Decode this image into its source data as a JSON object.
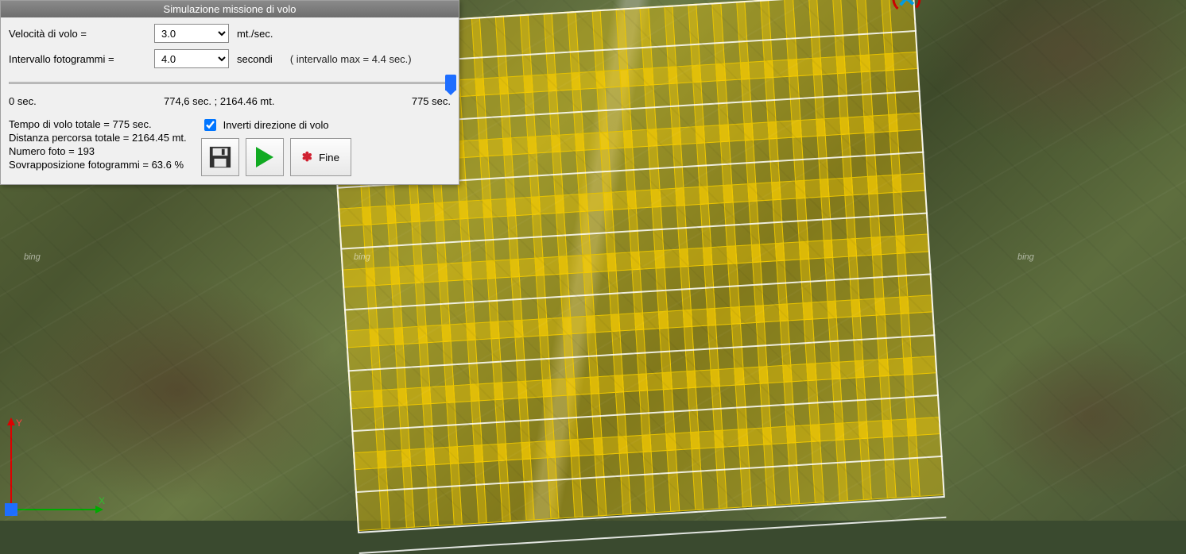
{
  "dialog": {
    "title": "Simulazione missione di volo",
    "speed": {
      "label": "Velocità di volo =",
      "value": "3.0",
      "unit": "mt./sec."
    },
    "interval": {
      "label": "Intervallo fotogrammi =",
      "value": "4.0",
      "unit": "secondi",
      "hint": "( intervallo max = 4.4 sec.)"
    },
    "slider": {
      "min_label": "0 sec.",
      "mid_label": "774,6 sec. ; 2164.46 mt.",
      "max_label": "775 sec.",
      "value": 774.6,
      "max": 775
    },
    "stats": {
      "line1": "Tempo di volo totale = 775 sec.",
      "line2": "Distanza percorsa totale = 2164.45 mt.",
      "line3": "Numero foto = 193",
      "line4": "Sovrapposizione fotogrammi = 63.6 %"
    },
    "invert": {
      "label": "Inverti direzione di volo",
      "checked": true
    },
    "buttons": {
      "save": "Salva",
      "play": "Play",
      "fine": "Fine"
    }
  },
  "survey": {
    "rows": 8,
    "cols": 24,
    "frame": {
      "w_pct": 5.6,
      "h_pct": 15.5,
      "col_spacing_pct": 4.1,
      "row_spacing_pct": 12.0,
      "color": "#e6c200",
      "fill": "rgba(255,210,0,0.35)"
    },
    "flight_lines": 9,
    "line_color": "#ffffff",
    "rotation_deg": -3.5
  },
  "map": {
    "attribution": "bing",
    "axis": {
      "x": "X",
      "y": "Y"
    }
  },
  "colors": {
    "titlebar_from": "#8a8a8a",
    "titlebar_to": "#6e6e6e",
    "dialog_bg": "#f0f0f0",
    "slider_thumb": "#1e6eff",
    "play": "#11aa22",
    "x_red": "#d02030",
    "axis_x": "#00aa00",
    "axis_y": "#dd0000",
    "origin": "#1e6eff"
  }
}
